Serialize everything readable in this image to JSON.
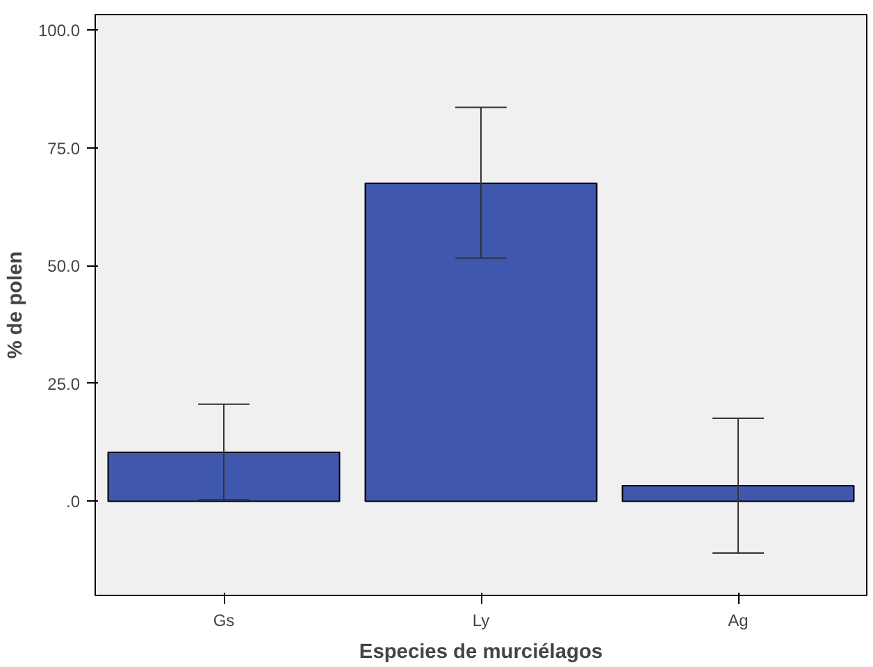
{
  "chart_data": {
    "type": "bar",
    "xlabel": "Especies de murciélagos",
    "ylabel": "% de polen",
    "categories": [
      "Gs",
      "Ly",
      "Ag"
    ],
    "values": [
      10.4,
      67.5,
      3.3
    ],
    "errors": [
      [
        0.3,
        20.6
      ],
      [
        51.6,
        83.6
      ],
      [
        -11.0,
        17.6
      ]
    ],
    "color": "#3f58ae",
    "ylim": [
      -20,
      103.3
    ],
    "yticks": [
      {
        "value": 0,
        "label": ".0"
      },
      {
        "value": 25,
        "label": "25.0"
      },
      {
        "value": 50,
        "label": "50.0"
      },
      {
        "value": 75,
        "label": "75.0"
      },
      {
        "value": 100,
        "label": "100.0"
      }
    ],
    "grid": false
  }
}
